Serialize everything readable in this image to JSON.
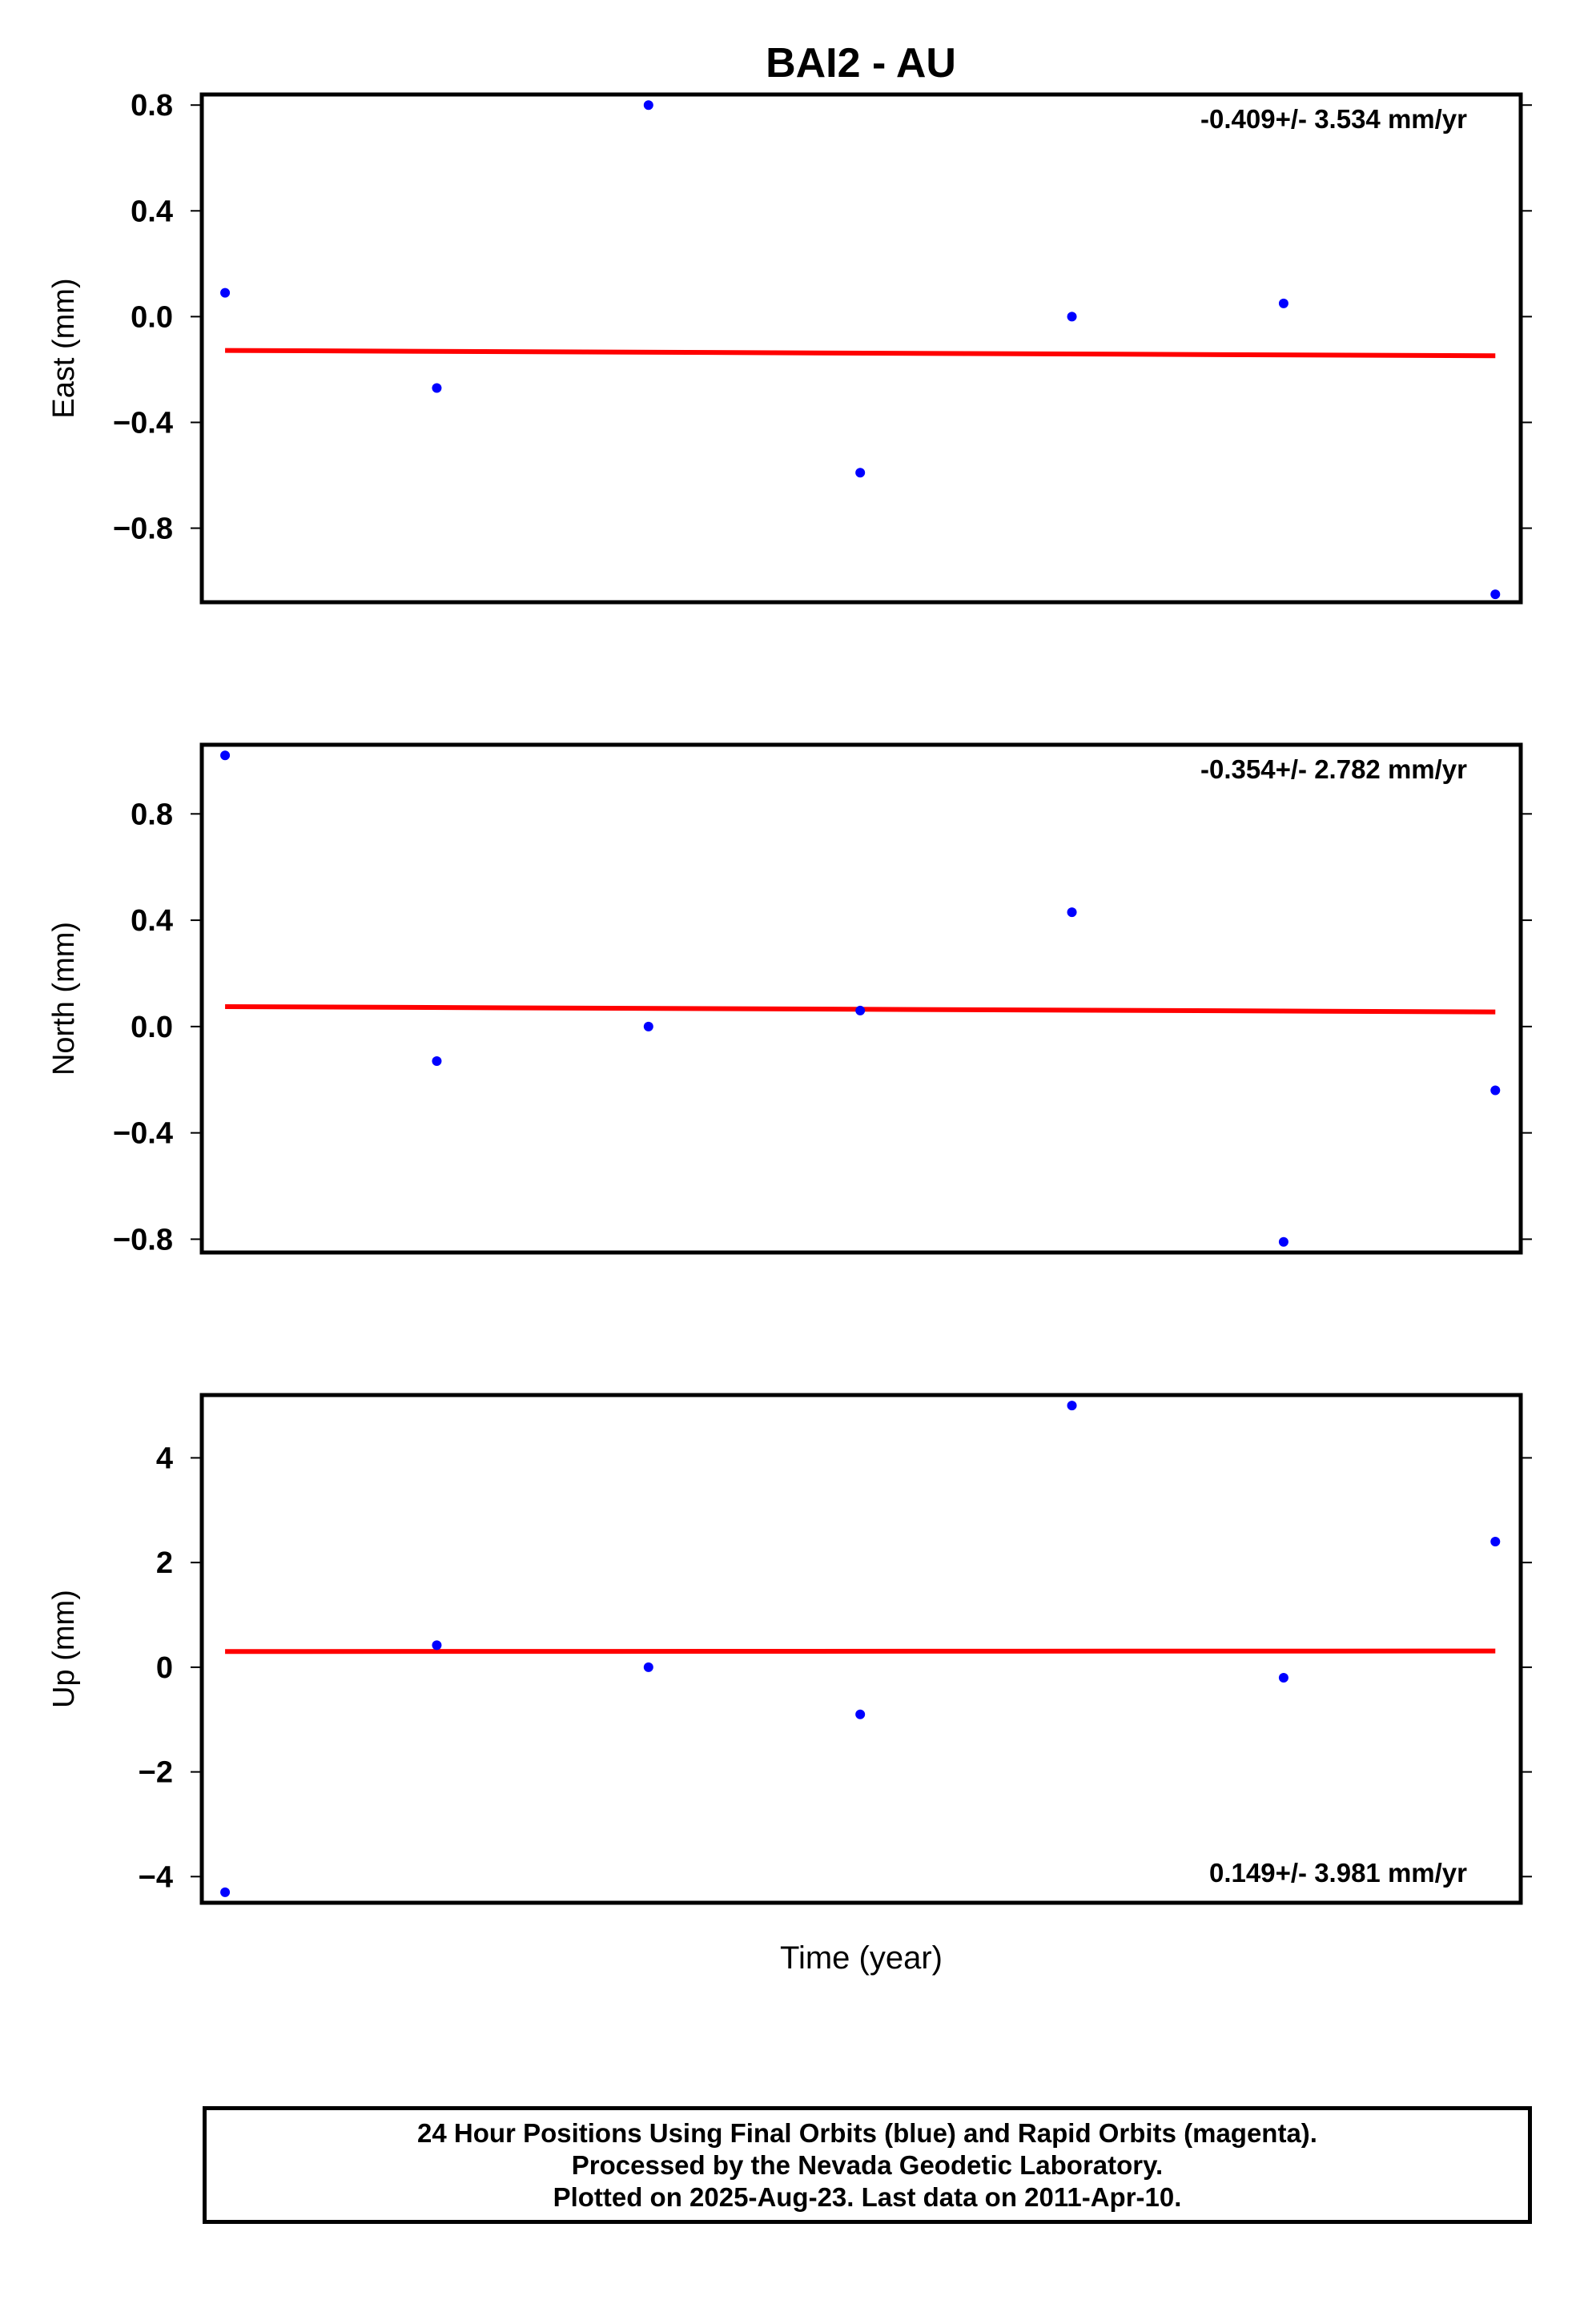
{
  "title": "BAI2 - AU",
  "colors": {
    "points": "#0000ff",
    "trend": "#ff0000",
    "axes": "#000000",
    "background": "#ffffff"
  },
  "chart_data": [
    {
      "type": "scatter",
      "name": "east",
      "ylabel": "East (mm)",
      "xlabel": "",
      "ylim": [
        -1.08,
        0.84
      ],
      "yticks": [
        0.8,
        0.4,
        0.0,
        -0.4,
        -0.8
      ],
      "ytick_labels": [
        "0.8",
        "0.4",
        "0.0",
        "−0.4",
        "−0.8"
      ],
      "x": [
        1,
        2,
        3,
        4,
        5,
        6,
        7
      ],
      "values": [
        0.09,
        -0.27,
        0.8,
        -0.59,
        0.0,
        0.05,
        -1.05
      ],
      "trend": [
        -0.128,
        -0.148
      ],
      "rate": "-0.409+/- 3.534 mm/yr",
      "rate_position": "top-right",
      "grid": false
    },
    {
      "type": "scatter",
      "name": "north",
      "ylabel": "North (mm)",
      "xlabel": "",
      "ylim": [
        -0.85,
        1.06
      ],
      "yticks": [
        0.8,
        0.4,
        0.0,
        -0.4,
        -0.8
      ],
      "ytick_labels": [
        "0.8",
        "0.4",
        "0.0",
        "−0.4",
        "−0.8"
      ],
      "x": [
        1,
        2,
        3,
        4,
        5,
        6,
        7
      ],
      "values": [
        1.02,
        -0.13,
        0.0,
        0.06,
        0.43,
        -0.81,
        -0.24
      ],
      "trend": [
        0.075,
        0.055
      ],
      "rate": "-0.354+/- 2.782 mm/yr",
      "rate_position": "top-right",
      "grid": false
    },
    {
      "type": "scatter",
      "name": "up",
      "ylabel": "Up (mm)",
      "xlabel": "Time (year)",
      "ylim": [
        -4.5,
        5.2
      ],
      "yticks": [
        4,
        2,
        0,
        -2,
        -4
      ],
      "ytick_labels": [
        "4",
        "2",
        "0",
        "−2",
        "−4"
      ],
      "x": [
        1,
        2,
        3,
        4,
        5,
        6,
        7
      ],
      "values": [
        -4.3,
        0.42,
        0.0,
        -0.9,
        5.0,
        -0.2,
        2.4
      ],
      "trend": [
        0.3,
        0.31
      ],
      "rate": "0.149+/- 3.981 mm/yr",
      "rate_position": "bottom-right",
      "grid": false
    }
  ],
  "footer": {
    "line1": "24 Hour Positions Using Final Orbits (blue) and Rapid Orbits (magenta).",
    "line2": "Processed by the Nevada Geodetic Laboratory.",
    "line3": "Plotted on 2025-Aug-23. Last data on 2011-Apr-10."
  }
}
